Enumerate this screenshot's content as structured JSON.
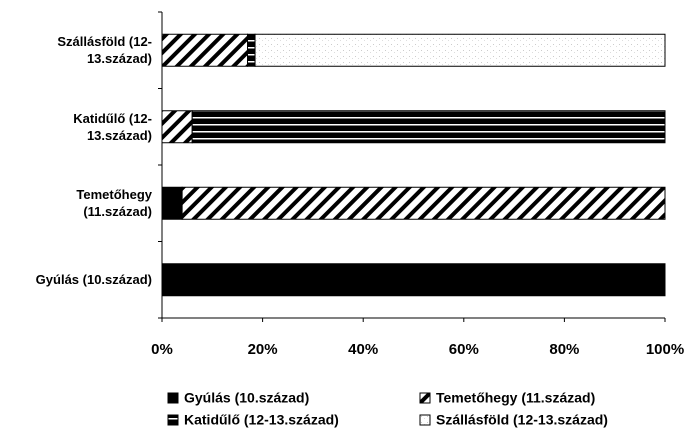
{
  "chart_data": {
    "type": "bar",
    "orientation": "horizontal",
    "stacked": true,
    "categories": [
      "Szállásföld (12-13.század)",
      "Katidűlő (12-13.század)",
      "Temetőhegy (11.század)",
      "Gyúlás (10.század)"
    ],
    "series": [
      {
        "name": "Gyúlás (10.század)",
        "color": "#000000",
        "pattern": "solid",
        "values": [
          0,
          0,
          4,
          100
        ]
      },
      {
        "name": "Temetőhegy (11.század)",
        "color": "#000000",
        "pattern": "diagonal",
        "values": [
          17,
          6,
          96,
          0
        ]
      },
      {
        "name": "Katidűlő (12-13.század)",
        "color": "#000000",
        "pattern": "horizontal",
        "values": [
          1.5,
          94,
          0,
          0
        ]
      },
      {
        "name": "Szállásföld (12-13.század)",
        "color": "#000000",
        "pattern": "stipple",
        "values": [
          81.5,
          0,
          0,
          0
        ]
      }
    ],
    "xlim": [
      0,
      100
    ],
    "xticks": [
      {
        "value": 0,
        "label": "0%"
      },
      {
        "value": 20,
        "label": "20%"
      },
      {
        "value": 40,
        "label": "40%"
      },
      {
        "value": 60,
        "label": "60%"
      },
      {
        "value": 80,
        "label": "80%"
      },
      {
        "value": 100,
        "label": "100%"
      }
    ],
    "legend": "bottom"
  }
}
